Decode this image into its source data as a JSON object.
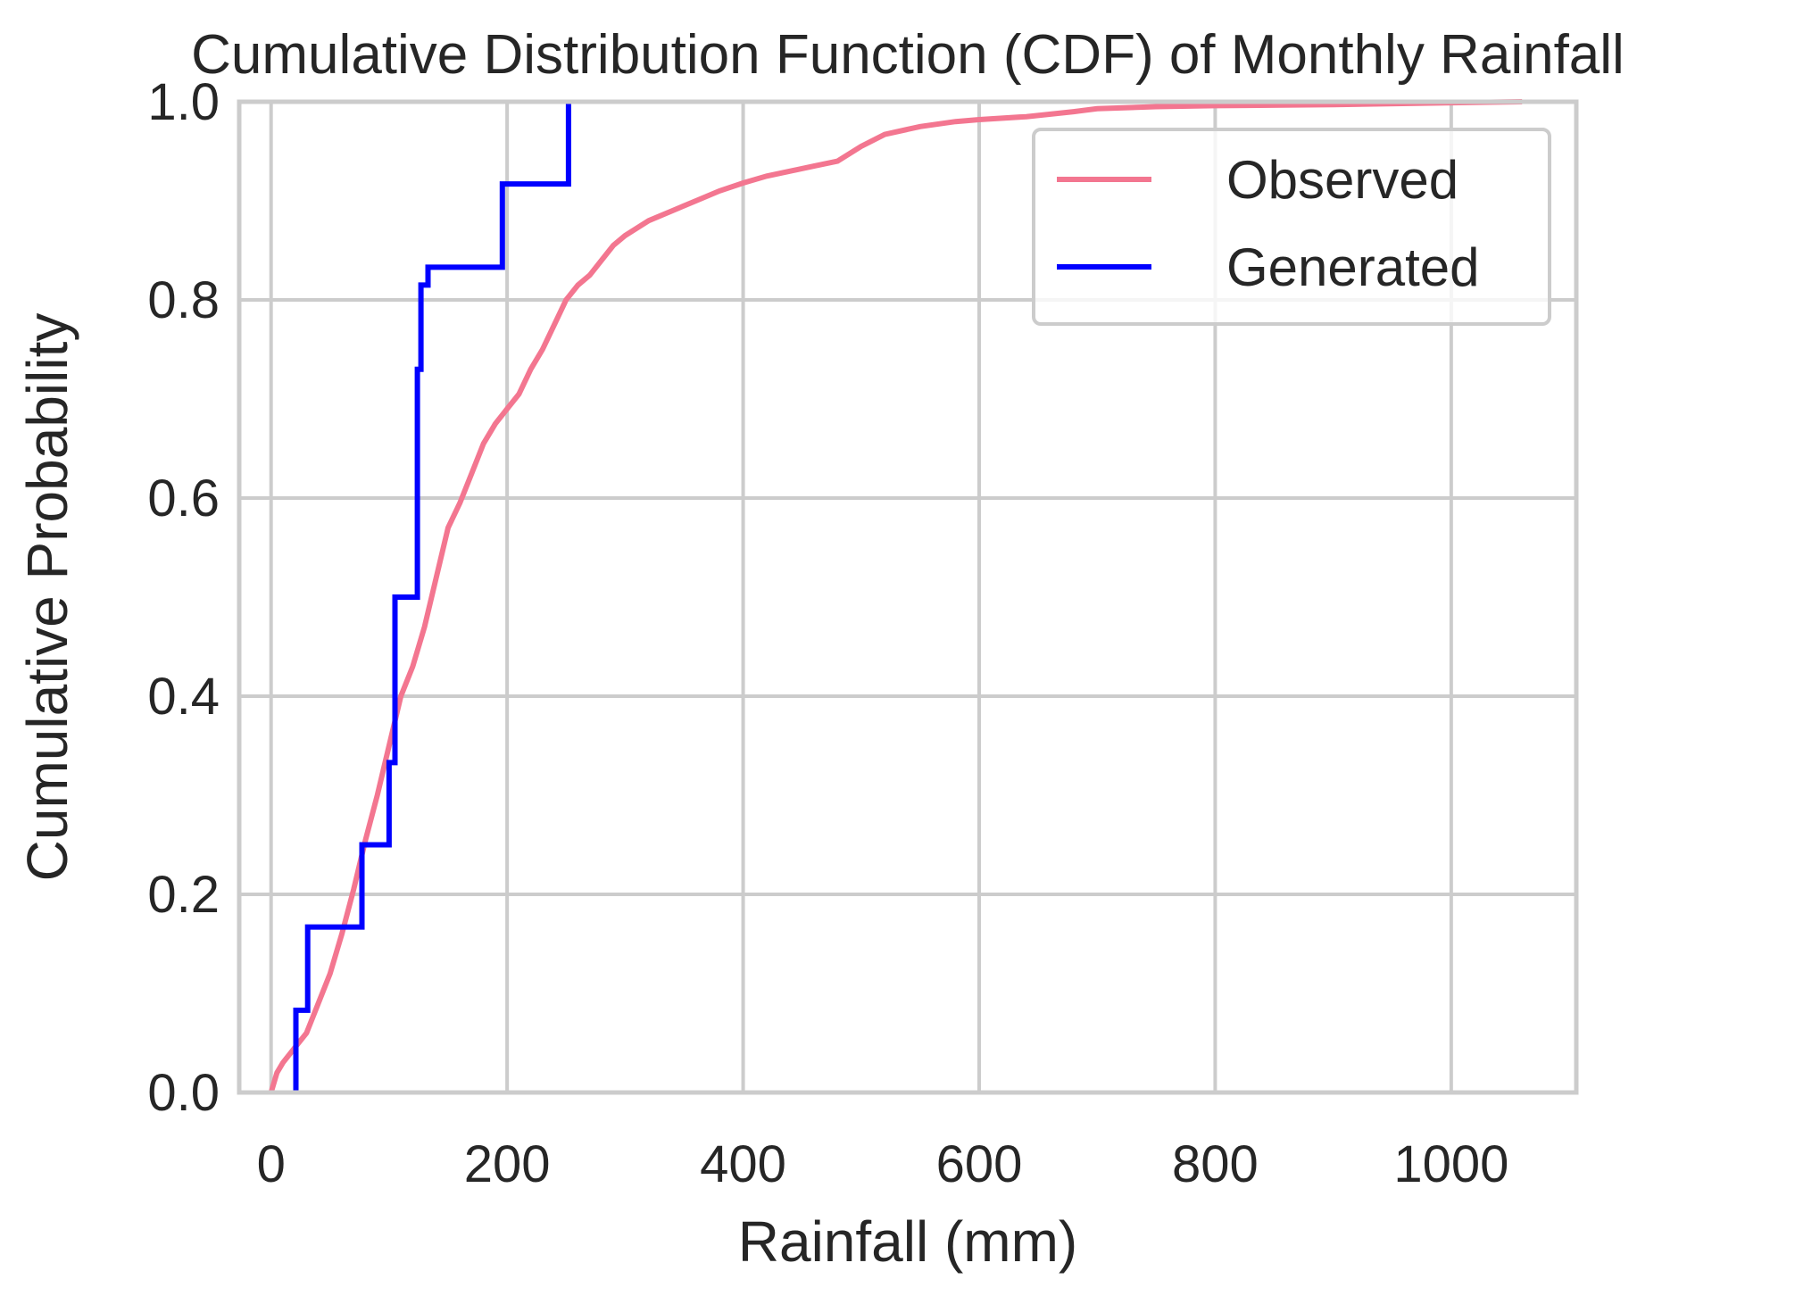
{
  "chart_data": {
    "type": "line",
    "title": "Cumulative Distribution Function (CDF) of Monthly Rainfall",
    "xlabel": "Rainfall (mm)",
    "ylabel": "Cumulative Probability",
    "xlim": [
      -27,
      1106
    ],
    "ylim": [
      0.0,
      1.0
    ],
    "xticks": [
      0,
      200,
      400,
      600,
      800,
      1000
    ],
    "xtick_labels": [
      "0",
      "200",
      "400",
      "600",
      "800",
      "1000"
    ],
    "yticks": [
      0.0,
      0.2,
      0.4,
      0.6,
      0.8,
      1.0
    ],
    "ytick_labels": [
      "0.0",
      "0.2",
      "0.4",
      "0.6",
      "0.8",
      "1.0"
    ],
    "grid": true,
    "legend_position": "upper right",
    "series": [
      {
        "name": "Observed",
        "color": "#f37690",
        "drawstyle": "line",
        "x": [
          0,
          5,
          10,
          20,
          30,
          40,
          50,
          60,
          70,
          80,
          90,
          100,
          110,
          120,
          130,
          140,
          150,
          160,
          170,
          180,
          190,
          200,
          210,
          220,
          230,
          240,
          250,
          260,
          270,
          280,
          290,
          300,
          320,
          340,
          360,
          380,
          400,
          420,
          440,
          460,
          480,
          500,
          520,
          550,
          580,
          600,
          640,
          680,
          700,
          750,
          800,
          900,
          1000,
          1060
        ],
        "y": [
          0.0,
          0.02,
          0.03,
          0.045,
          0.06,
          0.09,
          0.12,
          0.16,
          0.205,
          0.255,
          0.3,
          0.35,
          0.4,
          0.43,
          0.47,
          0.52,
          0.57,
          0.595,
          0.625,
          0.655,
          0.675,
          0.69,
          0.705,
          0.73,
          0.75,
          0.775,
          0.8,
          0.815,
          0.825,
          0.84,
          0.855,
          0.865,
          0.88,
          0.89,
          0.9,
          0.91,
          0.918,
          0.925,
          0.93,
          0.935,
          0.94,
          0.955,
          0.967,
          0.975,
          0.98,
          0.982,
          0.985,
          0.99,
          0.993,
          0.995,
          0.996,
          0.997,
          0.999,
          1.0
        ]
      },
      {
        "name": "Generated",
        "color": "#0000ff",
        "drawstyle": "steps-post",
        "x": [
          21,
          21,
          31,
          31,
          77,
          77,
          100,
          100,
          105,
          105,
          124,
          124,
          127,
          127,
          133,
          133,
          141,
          141,
          196,
          196,
          252,
          252
        ],
        "y": [
          0.0,
          0.083,
          0.083,
          0.167,
          0.167,
          0.25,
          0.25,
          0.333,
          0.333,
          0.5,
          0.5,
          0.73,
          0.73,
          0.815,
          0.815,
          0.833,
          0.833,
          0.833,
          0.833,
          0.917,
          0.917,
          1.0
        ]
      }
    ]
  }
}
